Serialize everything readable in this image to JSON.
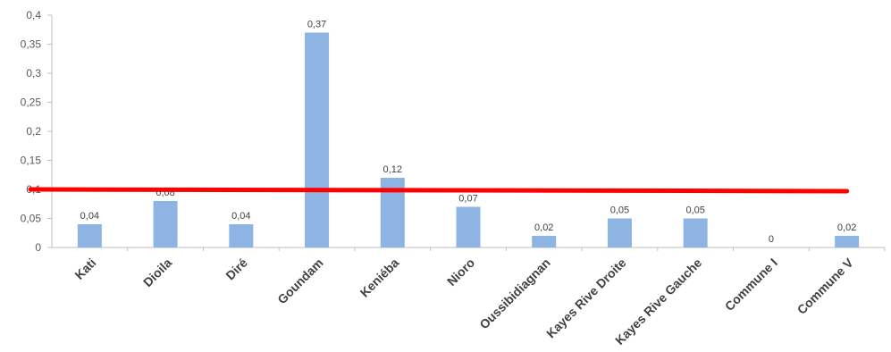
{
  "chart_data": {
    "type": "bar",
    "categories": [
      "Kati",
      "Dioila",
      "Diré",
      "Goundam",
      "Keniéba",
      "Nioro",
      "Oussibidiagnan",
      "Kayes Rive Droite",
      "Kayes Rive Gauche",
      "Commune I",
      "Commune V"
    ],
    "values": [
      0.04,
      0.08,
      0.04,
      0.37,
      0.12,
      0.07,
      0.02,
      0.05,
      0.05,
      0,
      0.02
    ],
    "data_labels": [
      "0,04",
      "0,08",
      "0,04",
      "0,37",
      "0,12",
      "0,07",
      "0,02",
      "0,05",
      "0,05",
      "0",
      "0,02"
    ],
    "yticks": [
      0,
      0.05,
      0.1,
      0.15,
      0.2,
      0.25,
      0.3,
      0.35,
      0.4
    ],
    "ytick_labels": [
      "0",
      "0,05",
      "0,1",
      "0,15",
      "0,2",
      "0,25",
      "0,3",
      "0,35",
      "0,4"
    ],
    "ylim": [
      0,
      0.4
    ],
    "grid": false,
    "reference_line": {
      "y_start": 0.1,
      "y_end": 0.097
    },
    "colors": {
      "bar": "#8EB4E3",
      "reference_line": "#FF0000",
      "axis": "#BFBFBF"
    }
  }
}
